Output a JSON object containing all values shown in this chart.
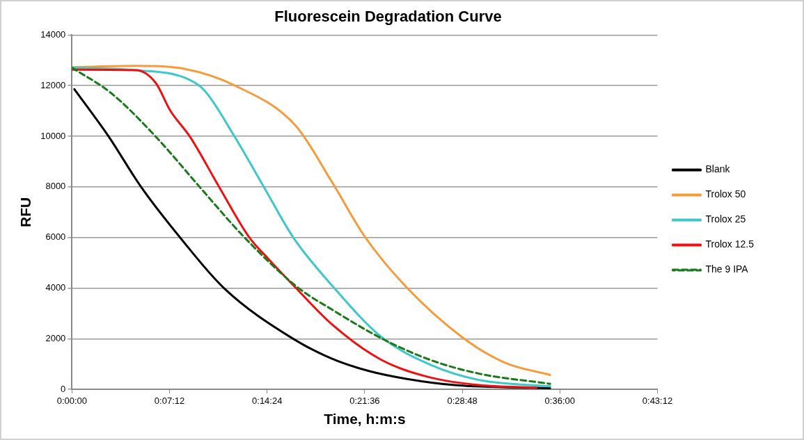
{
  "chart_data": {
    "type": "line",
    "title": "Fluorescein Degradation Curve",
    "xlabel": "Time, h:m:s",
    "ylabel": "RFU",
    "xlim": [
      0,
      0.72
    ],
    "xticks": [
      {
        "value": 0,
        "label": "0:00:00"
      },
      {
        "value": 0.12,
        "label": "0:07:12"
      },
      {
        "value": 0.24,
        "label": "0:14:24"
      },
      {
        "value": 0.36,
        "label": "0:21:36"
      },
      {
        "value": 0.48,
        "label": "0:28:48"
      },
      {
        "value": 0.6,
        "label": "0:36:00"
      },
      {
        "value": 0.72,
        "label": "0:43:12"
      }
    ],
    "ylim": [
      0,
      14000
    ],
    "yticks": [
      0,
      2000,
      4000,
      6000,
      8000,
      10000,
      12000,
      14000
    ],
    "grid": "y",
    "legend": "right",
    "marker": "none",
    "series": [
      {
        "name": "Blank",
        "color": "#000000",
        "x": [
          0.003,
          0.045,
          0.085,
          0.133,
          0.187,
          0.272,
          0.32,
          0.366,
          0.411,
          0.471,
          0.588
        ],
        "values": [
          11860,
          10000,
          8000,
          6000,
          4000,
          2000,
          1210,
          720,
          420,
          170,
          50
        ]
      },
      {
        "name": "Trolox 50",
        "color": "#f79a3a",
        "x": [
          0,
          0.079,
          0.139,
          0.2,
          0.275,
          0.32,
          0.36,
          0.411,
          0.48,
          0.532,
          0.588
        ],
        "values": [
          12730,
          12780,
          12660,
          12010,
          10420,
          8180,
          6040,
          4050,
          2060,
          1060,
          570
        ]
      },
      {
        "name": "Trolox 25",
        "color": "#3cc8c8",
        "x": [
          0,
          0.079,
          0.139,
          0.163,
          0.2,
          0.236,
          0.272,
          0.32,
          0.381,
          0.441,
          0.501,
          0.588
        ],
        "values": [
          12710,
          12610,
          12310,
          11810,
          9990,
          8000,
          6010,
          4100,
          2060,
          970,
          370,
          120
        ]
      },
      {
        "name": "Trolox 12.5",
        "color": "#ee1111",
        "x": [
          0,
          0.079,
          0.103,
          0.121,
          0.145,
          0.181,
          0.218,
          0.242,
          0.275,
          0.32,
          0.381,
          0.441,
          0.501,
          0.571
        ],
        "values": [
          12630,
          12610,
          12110,
          11010,
          9990,
          8000,
          6010,
          5140,
          4020,
          2560,
          1160,
          470,
          170,
          70
        ]
      },
      {
        "name": "The 9 IPA",
        "color": "#1a7a1a",
        "line_style": "dashed",
        "x": [
          0,
          0.048,
          0.103,
          0.157,
          0.212,
          0.278,
          0.32,
          0.381,
          0.441,
          0.501,
          0.588
        ],
        "values": [
          12710,
          11710,
          9990,
          8000,
          6010,
          4020,
          3150,
          2010,
          1160,
          620,
          220
        ]
      }
    ]
  }
}
